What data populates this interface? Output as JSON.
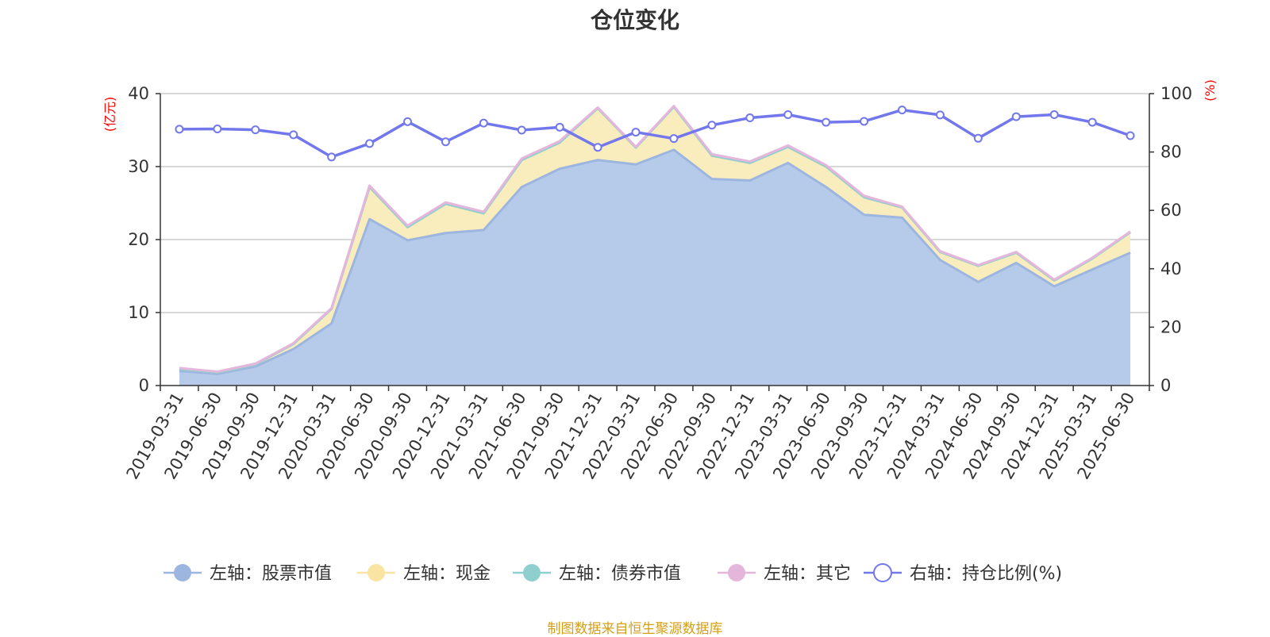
{
  "chart_data": {
    "type": "area",
    "title": "仓位变化",
    "categories": [
      "2019-03-31",
      "2019-06-30",
      "2019-09-30",
      "2019-12-31",
      "2020-03-31",
      "2020-06-30",
      "2020-09-30",
      "2020-12-31",
      "2021-03-31",
      "2021-06-30",
      "2021-09-30",
      "2021-12-31",
      "2022-03-31",
      "2022-06-30",
      "2022-09-30",
      "2022-12-31",
      "2023-03-31",
      "2023-06-30",
      "2023-09-30",
      "2023-12-31",
      "2024-03-31",
      "2024-06-30",
      "2024-09-30",
      "2024-12-31",
      "2025-03-31",
      "2025-06-30"
    ],
    "left_axis": {
      "unit": "(亿元)",
      "ylim": [
        0,
        40
      ],
      "ticks": [
        "0",
        "10",
        "20",
        "30",
        "40"
      ]
    },
    "right_axis": {
      "unit": "(%)",
      "ylim": [
        0,
        100
      ],
      "ticks": [
        "0",
        "20",
        "40",
        "60",
        "80",
        "100"
      ]
    },
    "grid": true,
    "stacked": true,
    "legend_position": "bottom",
    "series": [
      {
        "name": "左轴：股票市值",
        "axis": "left",
        "color": "#9db6df",
        "fill": "#b6cbe9",
        "values": [
          2.0,
          1.6,
          2.6,
          5.0,
          8.5,
          22.8,
          19.9,
          20.9,
          21.3,
          27.2,
          29.7,
          30.9,
          30.3,
          32.3,
          28.3,
          28.1,
          30.5,
          27.2,
          23.4,
          23.0,
          17.2,
          14.2,
          16.8,
          13.6,
          15.9,
          18.2
        ]
      },
      {
        "name": "左轴：现金",
        "axis": "left",
        "color": "#f9e4a3",
        "fill": "#f9ecbd",
        "values": [
          0.3,
          0.2,
          0.3,
          0.7,
          2.0,
          4.4,
          1.8,
          4.0,
          2.3,
          3.7,
          3.6,
          7.1,
          2.3,
          5.9,
          3.2,
          2.4,
          2.2,
          2.8,
          2.4,
          1.4,
          1.1,
          2.2,
          1.4,
          0.8,
          1.5,
          2.8
        ]
      },
      {
        "name": "左轴：债券市值",
        "axis": "left",
        "color": "#8fcfcf",
        "fill": "#a7dada",
        "values": [
          0,
          0,
          0,
          0,
          0,
          0,
          0,
          0,
          0,
          0,
          0,
          0,
          0,
          0,
          0,
          0,
          0,
          0,
          0,
          0,
          0,
          0,
          0,
          0,
          0,
          0
        ]
      },
      {
        "name": "左轴：其它",
        "axis": "left",
        "color": "#e5b6db",
        "fill": "#efcfe8",
        "values": [
          0.1,
          0.1,
          0.1,
          0.1,
          0.1,
          0.2,
          0.2,
          0.2,
          0.2,
          0.2,
          0.2,
          0.1,
          0.1,
          0.1,
          0.2,
          0.2,
          0.2,
          0.2,
          0.2,
          0.1,
          0.1,
          0.1,
          0.1,
          0.1,
          0.1,
          0.1
        ]
      },
      {
        "name": "右轴：持仓比例(%)",
        "axis": "right",
        "color": "#7278ec",
        "values": [
          87.8,
          87.9,
          87.6,
          85.9,
          78.3,
          82.9,
          90.4,
          83.5,
          89.9,
          87.5,
          88.5,
          81.6,
          86.8,
          84.6,
          89.2,
          91.7,
          92.8,
          90.2,
          90.5,
          94.4,
          92.7,
          84.7,
          92.1,
          92.8,
          90.2,
          85.6
        ]
      }
    ]
  },
  "footer": {
    "source": "制图数据来自恒生聚源数据库"
  }
}
